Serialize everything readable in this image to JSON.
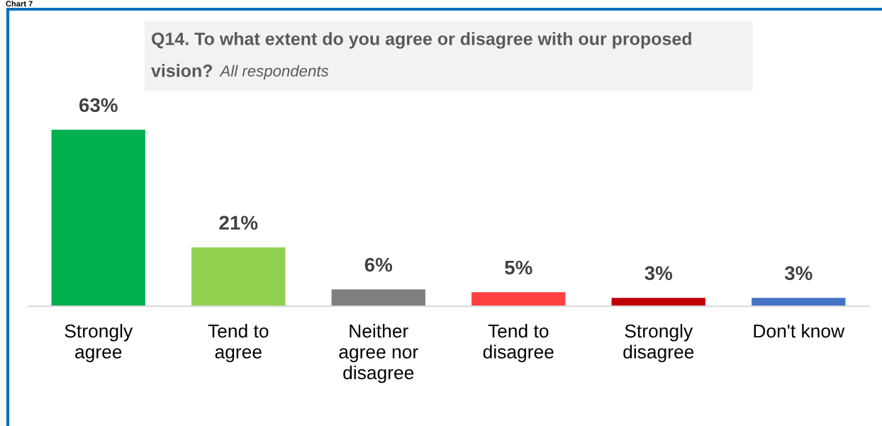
{
  "chart_data": {
    "type": "bar",
    "title": "Q14. To what extent do you agree or disagree with our proposed vision?",
    "subtitle": "All respondents",
    "categories": [
      "Strongly agree",
      "Tend to agree",
      "Neither agree nor disagree",
      "Tend to disagree",
      "Strongly disagree",
      "Don't know"
    ],
    "values": [
      63,
      21,
      6,
      5,
      3,
      3
    ],
    "colors": [
      "#00b050",
      "#92d050",
      "#7f7f7f",
      "#ff4040",
      "#c00000",
      "#4472c4"
    ],
    "value_labels": [
      "63%",
      "21%",
      "6%",
      "5%",
      "3%",
      "3%"
    ],
    "grid": false,
    "legend": false,
    "annotations": [
      "Chart 7"
    ]
  }
}
